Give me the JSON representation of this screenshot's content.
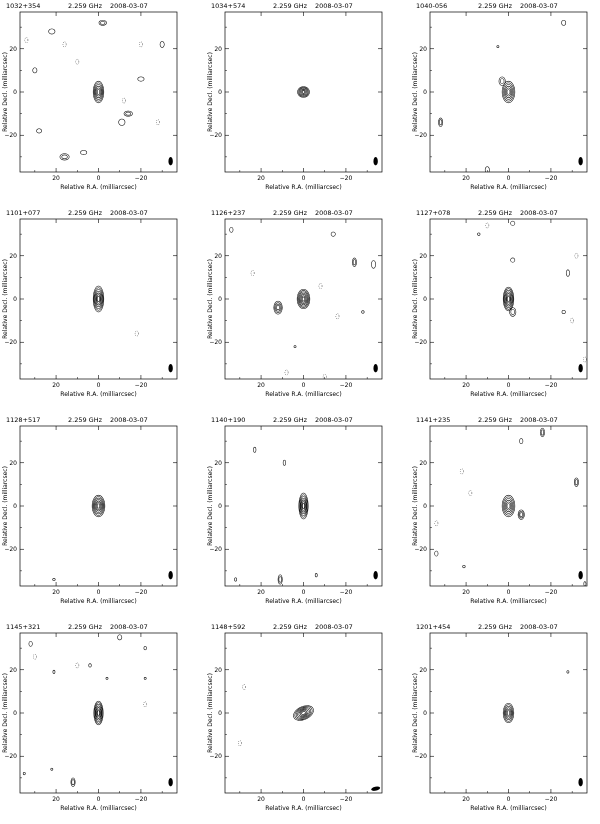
{
  "chart_data": [
    {
      "type": "contour",
      "source": "1032+354",
      "freq": "2.259 GHz",
      "date": "2008-03-07",
      "xlabel": "Relative R.A. (milliarcsec)",
      "ylabel": "Relative Decl. (milliarcsec)",
      "xticks": [
        "20",
        "0",
        "−20"
      ],
      "yticks": [
        "20",
        "0",
        "−20"
      ],
      "xlim": [
        37,
        -37
      ],
      "ylim": [
        -37,
        37
      ],
      "components": [
        {
          "x": 0,
          "y": 0,
          "rx": 2.5,
          "ry": 5,
          "levels": 6
        },
        {
          "x": -2,
          "y": 32,
          "rx": 1.8,
          "ry": 1.2,
          "levels": 2
        },
        {
          "x": 22,
          "y": 28,
          "rx": 1.5,
          "ry": 1.2,
          "levels": 1
        },
        {
          "x": -14,
          "y": -10,
          "rx": 2,
          "ry": 1.2,
          "levels": 2
        },
        {
          "x": -11,
          "y": -14,
          "rx": 1.5,
          "ry": 1.5,
          "levels": 1
        },
        {
          "x": 28,
          "y": -18,
          "rx": 1.2,
          "ry": 1,
          "levels": 1
        },
        {
          "x": 16,
          "y": -30,
          "rx": 2.2,
          "ry": 1.5,
          "levels": 2
        },
        {
          "x": 7,
          "y": -28,
          "rx": 1.5,
          "ry": 1,
          "levels": 1
        },
        {
          "x": -20,
          "y": 6,
          "rx": 1.5,
          "ry": 1,
          "levels": 1
        },
        {
          "x": -30,
          "y": 22,
          "rx": 1,
          "ry": 1.4,
          "levels": 1
        },
        {
          "x": 30,
          "y": 10,
          "rx": 1,
          "ry": 1.2,
          "levels": 1
        }
      ],
      "dashed": [
        {
          "x": 34,
          "y": 24
        },
        {
          "x": 16,
          "y": 22
        },
        {
          "x": -12,
          "y": -4
        },
        {
          "x": -28,
          "y": -14
        },
        {
          "x": -20,
          "y": 22
        },
        {
          "x": 10,
          "y": 14
        }
      ],
      "beam": {
        "x": -34,
        "y": -32
      }
    },
    {
      "type": "contour",
      "source": "1034+574",
      "freq": "2.259 GHz",
      "date": "2008-03-07",
      "xlabel": "Relative R.A. (milliarcsec)",
      "ylabel": "Relative Decl. (milliarcsec)",
      "xticks": [
        "20",
        "0",
        "−20"
      ],
      "yticks": [
        "20",
        "0",
        "−20"
      ],
      "xlim": [
        37,
        -37
      ],
      "ylim": [
        -37,
        37
      ],
      "components": [
        {
          "x": 0,
          "y": 0,
          "rx": 2.8,
          "ry": 2.5,
          "levels": 6
        }
      ],
      "dashed": [],
      "beam": {
        "x": -34,
        "y": -32
      }
    },
    {
      "type": "contour",
      "source": "1040-056",
      "freq": "2.259 GHz",
      "date": "2008-03-07",
      "xlabel": "Relative R.A. (milliarcsec)",
      "ylabel": "Relative Decl. (milliarcsec)",
      "xticks": [
        "20",
        "0",
        "−20"
      ],
      "yticks": [
        "20",
        "0",
        "−20"
      ],
      "xlim": [
        37,
        -37
      ],
      "ylim": [
        -37,
        37
      ],
      "components": [
        {
          "x": 0,
          "y": 0,
          "rx": 3,
          "ry": 5,
          "levels": 6
        },
        {
          "x": 3,
          "y": 5,
          "rx": 1.5,
          "ry": 2,
          "levels": 2
        },
        {
          "x": 32,
          "y": -14,
          "rx": 1,
          "ry": 2,
          "levels": 2
        },
        {
          "x": 10,
          "y": -36,
          "rx": 1,
          "ry": 1.5,
          "levels": 1
        },
        {
          "x": -26,
          "y": 32,
          "rx": 1,
          "ry": 1.2,
          "levels": 1
        },
        {
          "x": 5,
          "y": 21,
          "rx": 0.5,
          "ry": 0.5,
          "levels": 1
        }
      ],
      "dashed": [],
      "beam": {
        "x": -34,
        "y": -32
      }
    },
    {
      "type": "contour",
      "source": "1101+077",
      "freq": "2.259 GHz",
      "date": "2008-03-07",
      "xlabel": "Relative R.A. (milliarcsec)",
      "ylabel": "Relative Decl. (milliarcsec)",
      "xticks": [
        "20",
        "0",
        "−20"
      ],
      "yticks": [
        "20",
        "0",
        "−20"
      ],
      "xlim": [
        37,
        -37
      ],
      "ylim": [
        -37,
        37
      ],
      "components": [
        {
          "x": 0,
          "y": 0,
          "rx": 2.5,
          "ry": 6,
          "levels": 7
        }
      ],
      "dashed": [
        {
          "x": -18,
          "y": -16
        }
      ],
      "beam": {
        "x": -34,
        "y": -32
      }
    },
    {
      "type": "contour",
      "source": "1126+237",
      "freq": "2.259 GHz",
      "date": "2008-03-07",
      "xlabel": "Relative R.A. (milliarcsec)",
      "ylabel": "Relative Decl. (milliarcsec)",
      "xticks": [
        "20",
        "0",
        "−20"
      ],
      "yticks": [
        "20",
        "0",
        "−20"
      ],
      "xlim": [
        37,
        -37
      ],
      "ylim": [
        -37,
        37
      ],
      "components": [
        {
          "x": 0,
          "y": 0,
          "rx": 3,
          "ry": 4.5,
          "levels": 7
        },
        {
          "x": 12,
          "y": -4,
          "rx": 2,
          "ry": 3,
          "levels": 4
        },
        {
          "x": -24,
          "y": 17,
          "rx": 1,
          "ry": 2,
          "levels": 2
        },
        {
          "x": -33,
          "y": 16,
          "rx": 1,
          "ry": 1.8,
          "levels": 1
        },
        {
          "x": -14,
          "y": 30,
          "rx": 1,
          "ry": 1,
          "levels": 1
        },
        {
          "x": 34,
          "y": 32,
          "rx": 0.8,
          "ry": 1.2,
          "levels": 1
        },
        {
          "x": -28,
          "y": -6,
          "rx": 0.6,
          "ry": 0.6,
          "levels": 1
        },
        {
          "x": 4,
          "y": -22,
          "rx": 0.5,
          "ry": 0.5,
          "levels": 1
        }
      ],
      "dashed": [
        {
          "x": -8,
          "y": 6
        },
        {
          "x": -16,
          "y": -8
        },
        {
          "x": -10,
          "y": -36
        },
        {
          "x": 8,
          "y": -34
        },
        {
          "x": 24,
          "y": 12
        }
      ],
      "beam": {
        "x": -34,
        "y": -32
      }
    },
    {
      "type": "contour",
      "source": "1127+078",
      "freq": "2.259 GHz",
      "date": "2008-03-07",
      "xlabel": "Relative R.A. (milliarcsec)",
      "ylabel": "Relative Decl. (milliarcsec)",
      "xticks": [
        "20",
        "0",
        "−20"
      ],
      "yticks": [
        "20",
        "0",
        "−20"
      ],
      "xlim": [
        37,
        -37
      ],
      "ylim": [
        -37,
        37
      ],
      "components": [
        {
          "x": 0,
          "y": 0,
          "rx": 2.5,
          "ry": 5.5,
          "levels": 7
        },
        {
          "x": -2,
          "y": -6,
          "rx": 1.5,
          "ry": 2,
          "levels": 2
        },
        {
          "x": -26,
          "y": -6,
          "rx": 0.8,
          "ry": 0.8,
          "levels": 1
        },
        {
          "x": -28,
          "y": 12,
          "rx": 0.8,
          "ry": 1.5,
          "levels": 1
        },
        {
          "x": -2,
          "y": 35,
          "rx": 1,
          "ry": 1,
          "levels": 1
        },
        {
          "x": -2,
          "y": 18,
          "rx": 1,
          "ry": 1,
          "levels": 1
        },
        {
          "x": 14,
          "y": 30,
          "rx": 0.6,
          "ry": 0.6,
          "levels": 1
        }
      ],
      "dashed": [
        {
          "x": -32,
          "y": 20
        },
        {
          "x": -30,
          "y": -10
        },
        {
          "x": -36,
          "y": -28
        },
        {
          "x": 10,
          "y": 34
        }
      ],
      "beam": {
        "x": -34,
        "y": -32
      }
    },
    {
      "type": "contour",
      "source": "1128+517",
      "freq": "2.259 GHz",
      "date": "2008-03-07",
      "xlabel": "Relative R.A. (milliarcsec)",
      "ylabel": "Relative Decl. (milliarcsec)",
      "xticks": [
        "20",
        "0",
        "−20"
      ],
      "yticks": [
        "20",
        "0",
        "−20"
      ],
      "xlim": [
        37,
        -37
      ],
      "ylim": [
        -37,
        37
      ],
      "components": [
        {
          "x": 0,
          "y": 0,
          "rx": 3,
          "ry": 5,
          "levels": 7
        },
        {
          "x": 21,
          "y": -34,
          "rx": 0.6,
          "ry": 0.5,
          "levels": 1
        }
      ],
      "dashed": [],
      "beam": {
        "x": -34,
        "y": -32
      }
    },
    {
      "type": "contour",
      "source": "1140+190",
      "freq": "2.259 GHz",
      "date": "2008-03-07",
      "xlabel": "Relative R.A. (milliarcsec)",
      "ylabel": "Relative Decl. (milliarcsec)",
      "xticks": [
        "20",
        "0",
        "−20"
      ],
      "yticks": [
        "20",
        "0",
        "−20"
      ],
      "xlim": [
        37,
        -37
      ],
      "ylim": [
        -37,
        37
      ],
      "components": [
        {
          "x": 0,
          "y": 0,
          "rx": 2.2,
          "ry": 6,
          "levels": 7
        },
        {
          "x": 11,
          "y": -34,
          "rx": 1,
          "ry": 2.2,
          "levels": 2
        },
        {
          "x": 23,
          "y": 26,
          "rx": 0.6,
          "ry": 1.2,
          "levels": 1
        },
        {
          "x": 9,
          "y": 20,
          "rx": 0.6,
          "ry": 1.2,
          "levels": 1
        },
        {
          "x": -6,
          "y": -32,
          "rx": 0.5,
          "ry": 0.8,
          "levels": 1
        },
        {
          "x": 32,
          "y": -34,
          "rx": 0.5,
          "ry": 0.8,
          "levels": 1
        }
      ],
      "dashed": [],
      "beam": {
        "x": -34,
        "y": -32
      }
    },
    {
      "type": "contour",
      "source": "1141+235",
      "freq": "2.259 GHz",
      "date": "2008-03-07",
      "xlabel": "Relative R.A. (milliarcsec)",
      "ylabel": "Relative Decl. (milliarcsec)",
      "xticks": [
        "20",
        "0",
        "−20"
      ],
      "yticks": [
        "20",
        "0",
        "−20"
      ],
      "xlim": [
        37,
        -37
      ],
      "ylim": [
        -37,
        37
      ],
      "components": [
        {
          "x": 0,
          "y": 0,
          "rx": 3,
          "ry": 5,
          "levels": 6
        },
        {
          "x": -6,
          "y": -4,
          "rx": 1.5,
          "ry": 2.2,
          "levels": 3
        },
        {
          "x": -16,
          "y": 34,
          "rx": 1,
          "ry": 2,
          "levels": 2
        },
        {
          "x": -6,
          "y": 30,
          "rx": 0.8,
          "ry": 1.2,
          "levels": 1
        },
        {
          "x": -32,
          "y": 11,
          "rx": 1,
          "ry": 2,
          "levels": 2
        },
        {
          "x": 34,
          "y": -22,
          "rx": 0.8,
          "ry": 1.2,
          "levels": 1
        },
        {
          "x": -36,
          "y": -36,
          "rx": 0.5,
          "ry": 1,
          "levels": 1
        },
        {
          "x": 21,
          "y": -28,
          "rx": 0.6,
          "ry": 0.6,
          "levels": 1
        }
      ],
      "dashed": [
        {
          "x": 18,
          "y": 6
        },
        {
          "x": 22,
          "y": 16
        },
        {
          "x": 34,
          "y": -8
        }
      ],
      "beam": {
        "x": -34,
        "y": -32
      }
    },
    {
      "type": "contour",
      "source": "1145+321",
      "freq": "2.259 GHz",
      "date": "2008-03-07",
      "xlabel": "Relative R.A. (milliarcsec)",
      "ylabel": "Relative Decl. (milliarcsec)",
      "xticks": [
        "20",
        "0",
        "−20"
      ],
      "yticks": [
        "20",
        "0",
        "−20"
      ],
      "xlim": [
        37,
        -37
      ],
      "ylim": [
        -37,
        37
      ],
      "components": [
        {
          "x": 0,
          "y": 0,
          "rx": 2.2,
          "ry": 5.5,
          "levels": 7
        },
        {
          "x": 12,
          "y": -32,
          "rx": 1,
          "ry": 2,
          "levels": 2
        },
        {
          "x": 32,
          "y": 32,
          "rx": 0.8,
          "ry": 1.2,
          "levels": 1
        },
        {
          "x": -10,
          "y": 35,
          "rx": 1,
          "ry": 1.2,
          "levels": 1
        },
        {
          "x": -22,
          "y": 30,
          "rx": 0.6,
          "ry": 0.8,
          "levels": 1
        },
        {
          "x": 4,
          "y": 22,
          "rx": 0.6,
          "ry": 0.8,
          "levels": 1
        },
        {
          "x": 21,
          "y": 19,
          "rx": 0.5,
          "ry": 0.8,
          "levels": 1
        },
        {
          "x": 35,
          "y": -28,
          "rx": 0.5,
          "ry": 0.6,
          "levels": 1
        },
        {
          "x": 22,
          "y": -26,
          "rx": 0.5,
          "ry": 0.5,
          "levels": 1
        },
        {
          "x": -4,
          "y": 16,
          "rx": 0.5,
          "ry": 0.5,
          "levels": 1
        },
        {
          "x": -22,
          "y": 16,
          "rx": 0.5,
          "ry": 0.5,
          "levels": 1
        }
      ],
      "dashed": [
        {
          "x": 10,
          "y": 22
        },
        {
          "x": -22,
          "y": 4
        },
        {
          "x": 30,
          "y": 26
        }
      ],
      "beam": {
        "x": -34,
        "y": -32
      }
    },
    {
      "type": "contour",
      "source": "1148+592",
      "freq": "2.259 GHz",
      "date": "2008-03-07",
      "xlabel": "Relative R.A. (milliarcsec)",
      "ylabel": "Relative Decl. (milliarcsec)",
      "xticks": [
        "20",
        "0",
        "−20"
      ],
      "yticks": [
        "20",
        "0",
        "−20"
      ],
      "xlim": [
        37,
        -37
      ],
      "ylim": [
        -37,
        37
      ],
      "components": [
        {
          "x": 0,
          "y": 0,
          "rx": 5,
          "ry": 3,
          "levels": 7,
          "rot": -25
        }
      ],
      "dashed": [
        {
          "x": 30,
          "y": -14
        },
        {
          "x": 28,
          "y": 12
        }
      ],
      "beam": {
        "x": -34,
        "y": -35
      }
    },
    {
      "type": "contour",
      "source": "1201+454",
      "freq": "2.259 GHz",
      "date": "2008-03-07",
      "xlabel": "Relative R.A. (milliarcsec)",
      "ylabel": "Relative Decl. (milliarcsec)",
      "xticks": [
        "20",
        "0",
        "−20"
      ],
      "yticks": [
        "20",
        "0",
        "−20"
      ],
      "xlim": [
        37,
        -37
      ],
      "ylim": [
        -37,
        37
      ],
      "components": [
        {
          "x": 0,
          "y": 0,
          "rx": 2.5,
          "ry": 4.5,
          "levels": 6
        },
        {
          "x": -28,
          "y": 19,
          "rx": 0.5,
          "ry": 0.6,
          "levels": 1
        }
      ],
      "dashed": [],
      "beam": {
        "x": -34,
        "y": -32
      }
    }
  ]
}
